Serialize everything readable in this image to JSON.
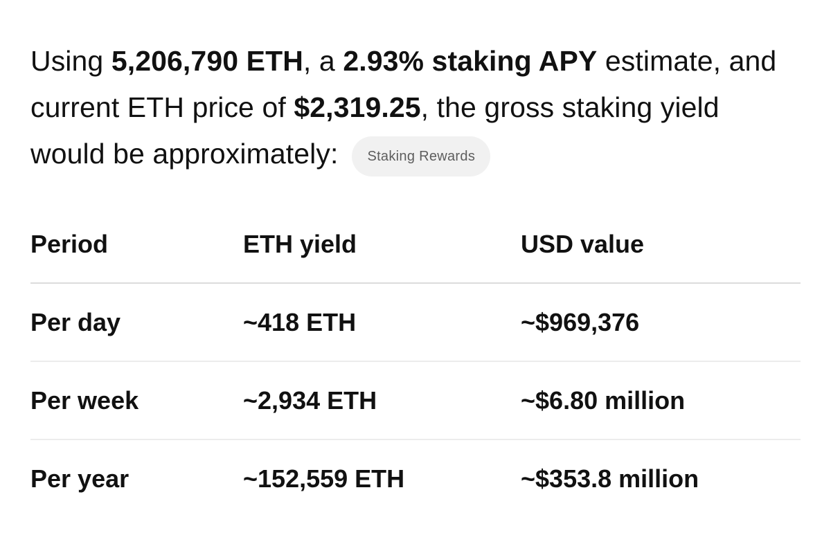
{
  "intro": {
    "prefix": "Using ",
    "eth_amount": "5,206,790 ETH",
    "mid1": ", a ",
    "apy": "2.93% staking APY",
    "mid2": " estimate, and current ETH price of ",
    "price": "$2,319.25",
    "suffix": ", the gross staking yield would be approximately:"
  },
  "source_pill": {
    "label": "Staking Rewards"
  },
  "table": {
    "headers": [
      "Period",
      "ETH yield",
      "USD value"
    ],
    "rows": [
      {
        "period": "Per day",
        "eth": "~418 ETH",
        "usd": "~$969,376"
      },
      {
        "period": "Per week",
        "eth": "~2,934 ETH",
        "usd": "~$6.80 million"
      },
      {
        "period": "Per year",
        "eth": "~152,559 ETH",
        "usd": "~$353.8 million"
      }
    ]
  },
  "colors": {
    "text": "#111111",
    "pill_bg": "#f1f1f1",
    "pill_text": "#5d5d5d",
    "divider": "#dcdcdc"
  }
}
